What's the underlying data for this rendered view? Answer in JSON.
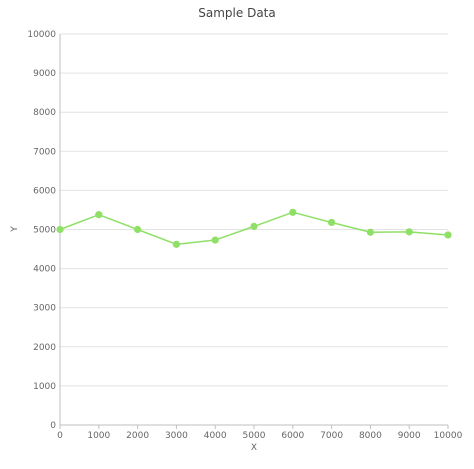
{
  "chart_data": {
    "type": "line",
    "title": "Sample Data",
    "xlabel": "X",
    "ylabel": "Y",
    "xlim": [
      0,
      10000
    ],
    "ylim": [
      0,
      10000
    ],
    "x_ticks": [
      0,
      1000,
      2000,
      3000,
      4000,
      5000,
      6000,
      7000,
      8000,
      9000,
      10000
    ],
    "y_ticks": [
      0,
      1000,
      2000,
      3000,
      4000,
      5000,
      6000,
      7000,
      8000,
      9000,
      10000
    ],
    "grid": true,
    "legend": false,
    "series": [
      {
        "color": "#8fe066",
        "x": [
          0,
          1000,
          2000,
          3000,
          4000,
          5000,
          6000,
          7000,
          8000,
          9000,
          10000
        ],
        "y": [
          5000,
          5380,
          5000,
          4620,
          4730,
          5080,
          5440,
          5180,
          4930,
          4940,
          4860
        ]
      }
    ]
  }
}
